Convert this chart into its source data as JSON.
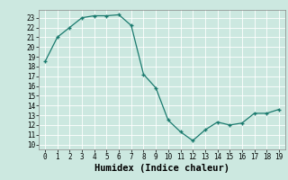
{
  "x": [
    0,
    1,
    2,
    3,
    4,
    5,
    6,
    7,
    8,
    9,
    10,
    11,
    12,
    13,
    14,
    15,
    16,
    17,
    18,
    19
  ],
  "y": [
    18.5,
    21,
    22,
    23,
    23.2,
    23.2,
    23.3,
    22.2,
    17.2,
    15.8,
    12.5,
    11.3,
    10.4,
    11.5,
    12.3,
    12.0,
    12.2,
    13.2,
    13.2,
    13.6
  ],
  "line_color": "#1a7a6e",
  "marker": "+",
  "bg_color": "#cce8e0",
  "grid_color": "#ffffff",
  "xlabel": "Humidex (Indice chaleur)",
  "xlim": [
    -0.5,
    19.5
  ],
  "ylim": [
    9.5,
    23.8
  ],
  "yticks": [
    10,
    11,
    12,
    13,
    14,
    15,
    16,
    17,
    18,
    19,
    20,
    21,
    22,
    23
  ],
  "xticks": [
    0,
    1,
    2,
    3,
    4,
    5,
    6,
    7,
    8,
    9,
    10,
    11,
    12,
    13,
    14,
    15,
    16,
    17,
    18,
    19
  ],
  "tick_fontsize": 5.5,
  "label_fontsize": 7.5
}
